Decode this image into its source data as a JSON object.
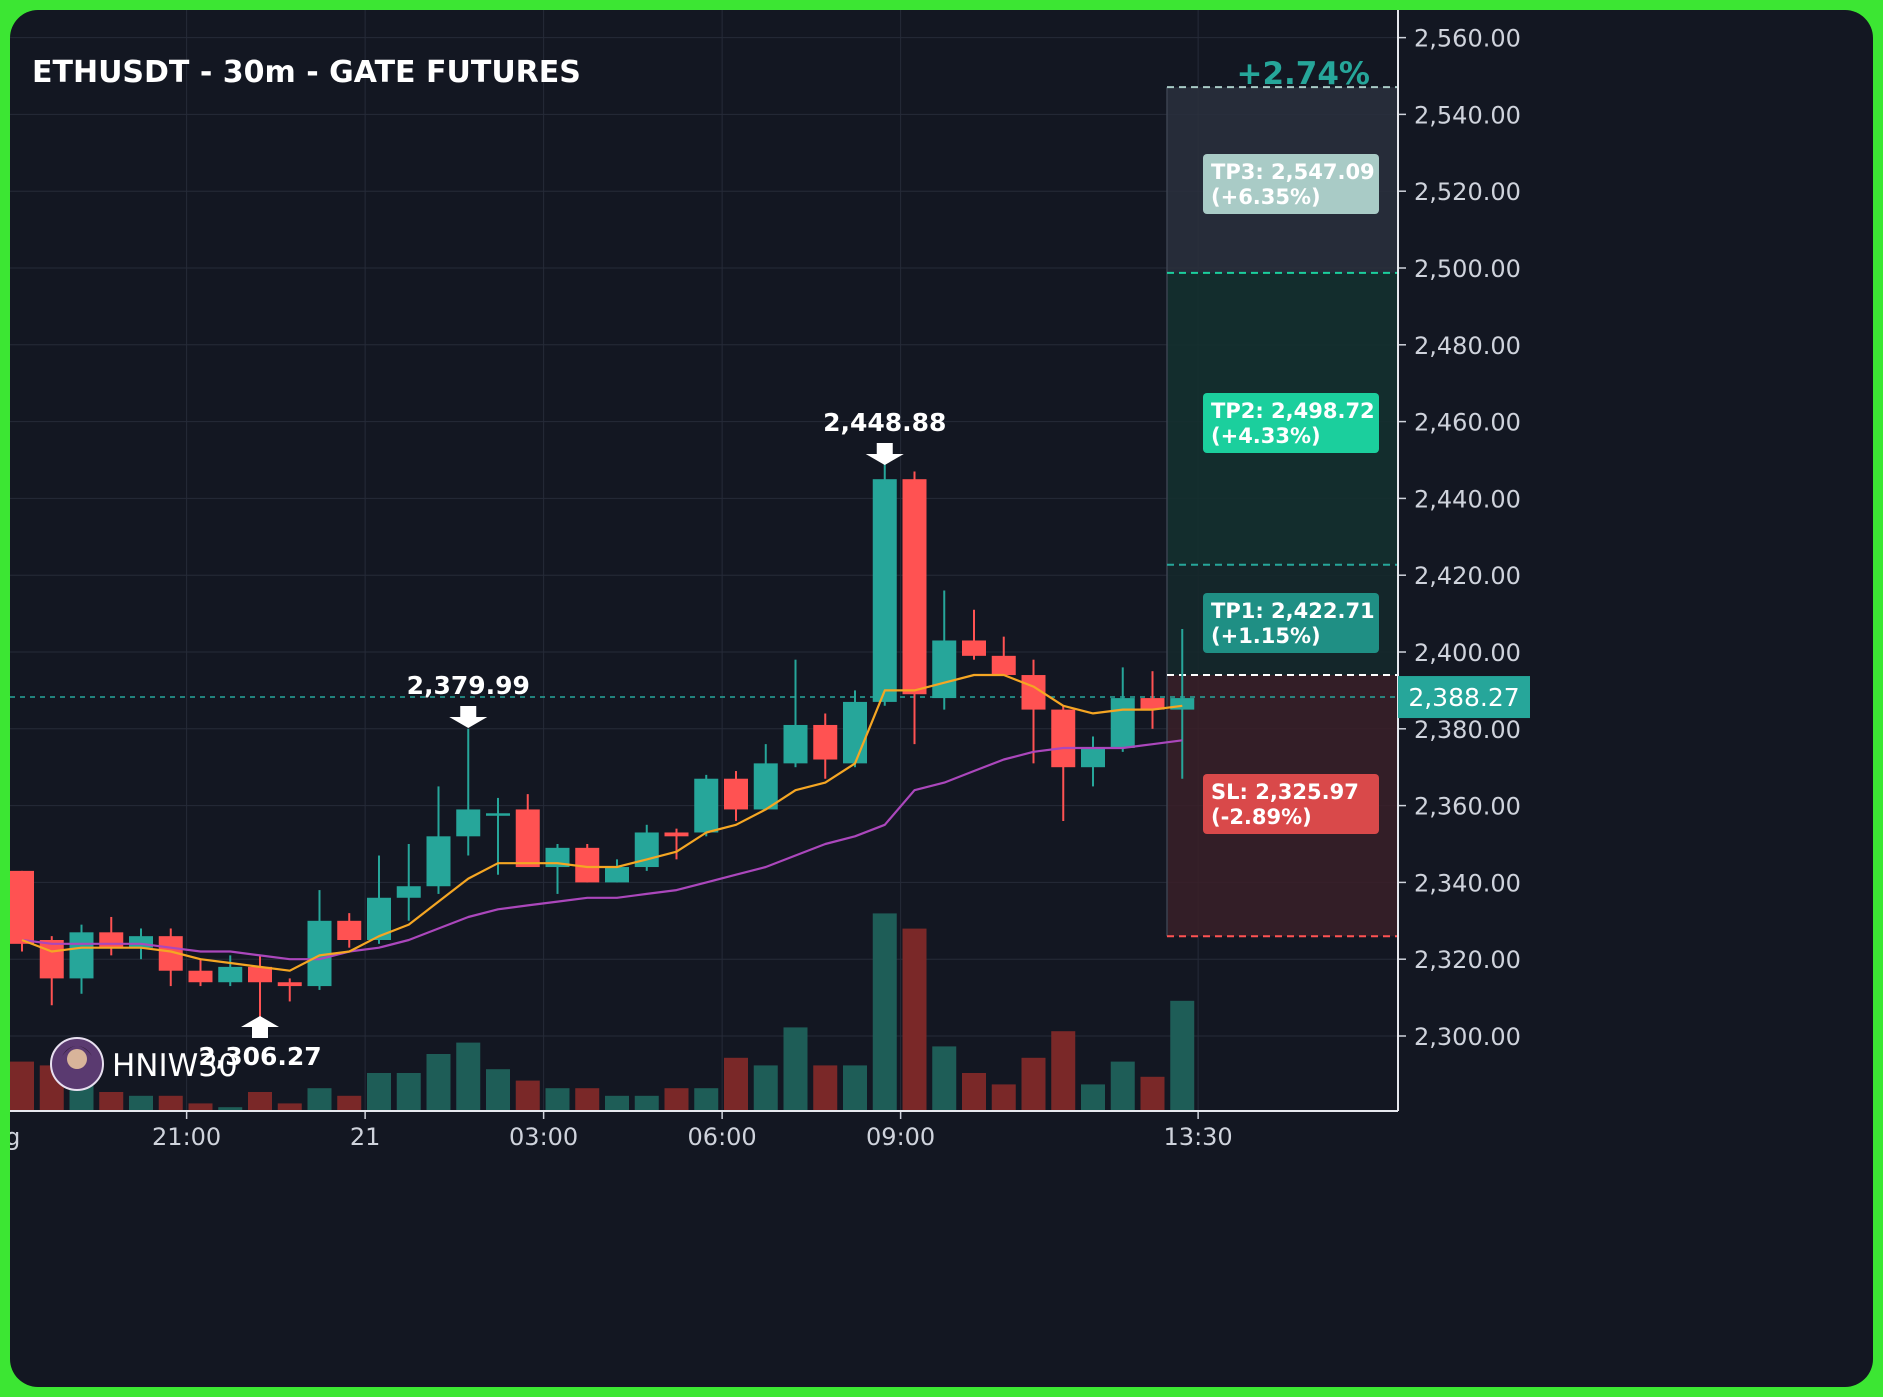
{
  "title": "ETHUSDT - 30m - GATE FUTURES",
  "change_pct": "+2.74%",
  "watermark": "HNIW30",
  "current_price": "2,388.27",
  "colors": {
    "bg": "#131722",
    "grid": "#262b38",
    "up": "#26a69a",
    "down": "#ff5252",
    "ema_fast": "#f5a623",
    "ema_slow": "#ab47bc",
    "tp_label_1": "#1f8f84",
    "tp_label_2": "#1bcf9d",
    "tp_label_3": "#a9cbc6",
    "sl_label": "#d9494a"
  },
  "annotations": {
    "high": "2,448.88",
    "mid": "2,379.99",
    "low": "2,306.27"
  },
  "levels": {
    "tp3": {
      "title": "TP3: 2,547.09",
      "pct": "(+6.35%)"
    },
    "tp2": {
      "title": "TP2: 2,498.72",
      "pct": "(+4.33%)"
    },
    "tp1": {
      "title": "TP1: 2,422.71",
      "pct": "(+1.15%)"
    },
    "sl": {
      "title": "SL: 2,325.97",
      "pct": "(-2.89%)"
    }
  },
  "chart_data": {
    "type": "candlestick",
    "y_axis_ticks": [
      "2,300.00",
      "2,320.00",
      "2,340.00",
      "2,360.00",
      "2,380.00",
      "2,400.00",
      "2,420.00",
      "2,440.00",
      "2,460.00",
      "2,480.00",
      "2,500.00",
      "2,520.00",
      "2,540.00",
      "2,560.00"
    ],
    "y_tick_values": [
      2300,
      2320,
      2340,
      2360,
      2380,
      2400,
      2420,
      2440,
      2460,
      2480,
      2500,
      2520,
      2540,
      2560
    ],
    "ylim": [
      2281,
      2565
    ],
    "x_axis_labels": [
      "ug",
      "21:00",
      "21",
      "03:00",
      "06:00",
      "09:00",
      "13:30"
    ],
    "x_label_bars": [
      -0.6,
      5.5,
      11.5,
      17.5,
      23.5,
      29.5,
      39.5
    ],
    "bar_spacing_bars": 40,
    "candles": [
      {
        "o": 2343,
        "h": 2343,
        "l": 2322,
        "c": 2324
      },
      {
        "o": 2325,
        "h": 2326,
        "l": 2308,
        "c": 2315
      },
      {
        "o": 2315,
        "h": 2329,
        "l": 2311,
        "c": 2327
      },
      {
        "o": 2327,
        "h": 2331,
        "l": 2321,
        "c": 2323
      },
      {
        "o": 2323,
        "h": 2328,
        "l": 2320,
        "c": 2326
      },
      {
        "o": 2326,
        "h": 2328,
        "l": 2313,
        "c": 2317
      },
      {
        "o": 2317,
        "h": 2320,
        "l": 2313,
        "c": 2314
      },
      {
        "o": 2314,
        "h": 2321,
        "l": 2313,
        "c": 2318
      },
      {
        "o": 2318,
        "h": 2321,
        "l": 2305,
        "c": 2314
      },
      {
        "o": 2314,
        "h": 2315,
        "l": 2309,
        "c": 2313
      },
      {
        "o": 2313,
        "h": 2338,
        "l": 2312,
        "c": 2330
      },
      {
        "o": 2330,
        "h": 2332,
        "l": 2323,
        "c": 2325
      },
      {
        "o": 2325,
        "h": 2347,
        "l": 2324,
        "c": 2336
      },
      {
        "o": 2336,
        "h": 2350,
        "l": 2330,
        "c": 2339
      },
      {
        "o": 2339,
        "h": 2365,
        "l": 2337,
        "c": 2352
      },
      {
        "o": 2352,
        "h": 2380,
        "l": 2347,
        "c": 2359
      },
      {
        "o": 2358,
        "h": 2362,
        "l": 2342,
        "c": 2358
      },
      {
        "o": 2359,
        "h": 2363,
        "l": 2344,
        "c": 2344
      },
      {
        "o": 2344,
        "h": 2350,
        "l": 2337,
        "c": 2349
      },
      {
        "o": 2349,
        "h": 2350,
        "l": 2340,
        "c": 2340
      },
      {
        "o": 2340,
        "h": 2346,
        "l": 2340,
        "c": 2344
      },
      {
        "o": 2344,
        "h": 2355,
        "l": 2343,
        "c": 2353
      },
      {
        "o": 2353,
        "h": 2354,
        "l": 2346,
        "c": 2352
      },
      {
        "o": 2353,
        "h": 2368,
        "l": 2352,
        "c": 2367
      },
      {
        "o": 2367,
        "h": 2369,
        "l": 2356,
        "c": 2359
      },
      {
        "o": 2359,
        "h": 2376,
        "l": 2359,
        "c": 2371
      },
      {
        "o": 2371,
        "h": 2398,
        "l": 2370,
        "c": 2381
      },
      {
        "o": 2381,
        "h": 2384,
        "l": 2367,
        "c": 2372
      },
      {
        "o": 2371,
        "h": 2390,
        "l": 2370,
        "c": 2387
      },
      {
        "o": 2387,
        "h": 2449,
        "l": 2386,
        "c": 2445
      },
      {
        "o": 2445,
        "h": 2447,
        "l": 2376,
        "c": 2389
      },
      {
        "o": 2388,
        "h": 2416,
        "l": 2385,
        "c": 2403
      },
      {
        "o": 2403,
        "h": 2411,
        "l": 2398,
        "c": 2399
      },
      {
        "o": 2399,
        "h": 2404,
        "l": 2394,
        "c": 2394
      },
      {
        "o": 2394,
        "h": 2398,
        "l": 2371,
        "c": 2385
      },
      {
        "o": 2385,
        "h": 2386,
        "l": 2356,
        "c": 2370
      },
      {
        "o": 2370,
        "h": 2378,
        "l": 2365,
        "c": 2375
      },
      {
        "o": 2375,
        "h": 2396,
        "l": 2374,
        "c": 2388
      },
      {
        "o": 2388,
        "h": 2395,
        "l": 2380,
        "c": 2385
      },
      {
        "o": 2385,
        "h": 2406,
        "l": 2367,
        "c": 2388
      }
    ],
    "volumes": [
      13,
      12,
      8,
      5,
      4,
      4,
      2,
      1,
      5,
      2,
      6,
      4,
      10,
      10,
      15,
      18,
      11,
      8,
      6,
      6,
      4,
      4,
      6,
      6,
      14,
      12,
      22,
      12,
      12,
      52,
      48,
      17,
      10,
      7,
      14,
      21,
      7,
      13,
      9,
      29
    ],
    "ema_fast": [
      2325,
      2322,
      2323,
      2323,
      2323,
      2322,
      2320,
      2319,
      2318,
      2317,
      2321,
      2322,
      2326,
      2329,
      2335,
      2341,
      2345,
      2345,
      2345,
      2344,
      2344,
      2346,
      2348,
      2353,
      2355,
      2359,
      2364,
      2366,
      2371,
      2390,
      2390,
      2392,
      2394,
      2394,
      2391,
      2386,
      2384,
      2385,
      2385,
      2386
    ],
    "ema_slow": [
      2325,
      2324,
      2324,
      2324,
      2324,
      2323,
      2322,
      2322,
      2321,
      2320,
      2320,
      2322,
      2323,
      2325,
      2328,
      2331,
      2333,
      2334,
      2335,
      2336,
      2336,
      2337,
      2338,
      2340,
      2342,
      2344,
      2347,
      2350,
      2352,
      2355,
      2364,
      2366,
      2369,
      2372,
      2374,
      2375,
      2375,
      2375,
      2376,
      2377
    ],
    "tp_sl": {
      "entry": 2388.27,
      "entry_line": 2394,
      "tp1": 2422.71,
      "tp2": 2498.72,
      "tp3": 2547.09,
      "sl": 2325.97
    }
  }
}
